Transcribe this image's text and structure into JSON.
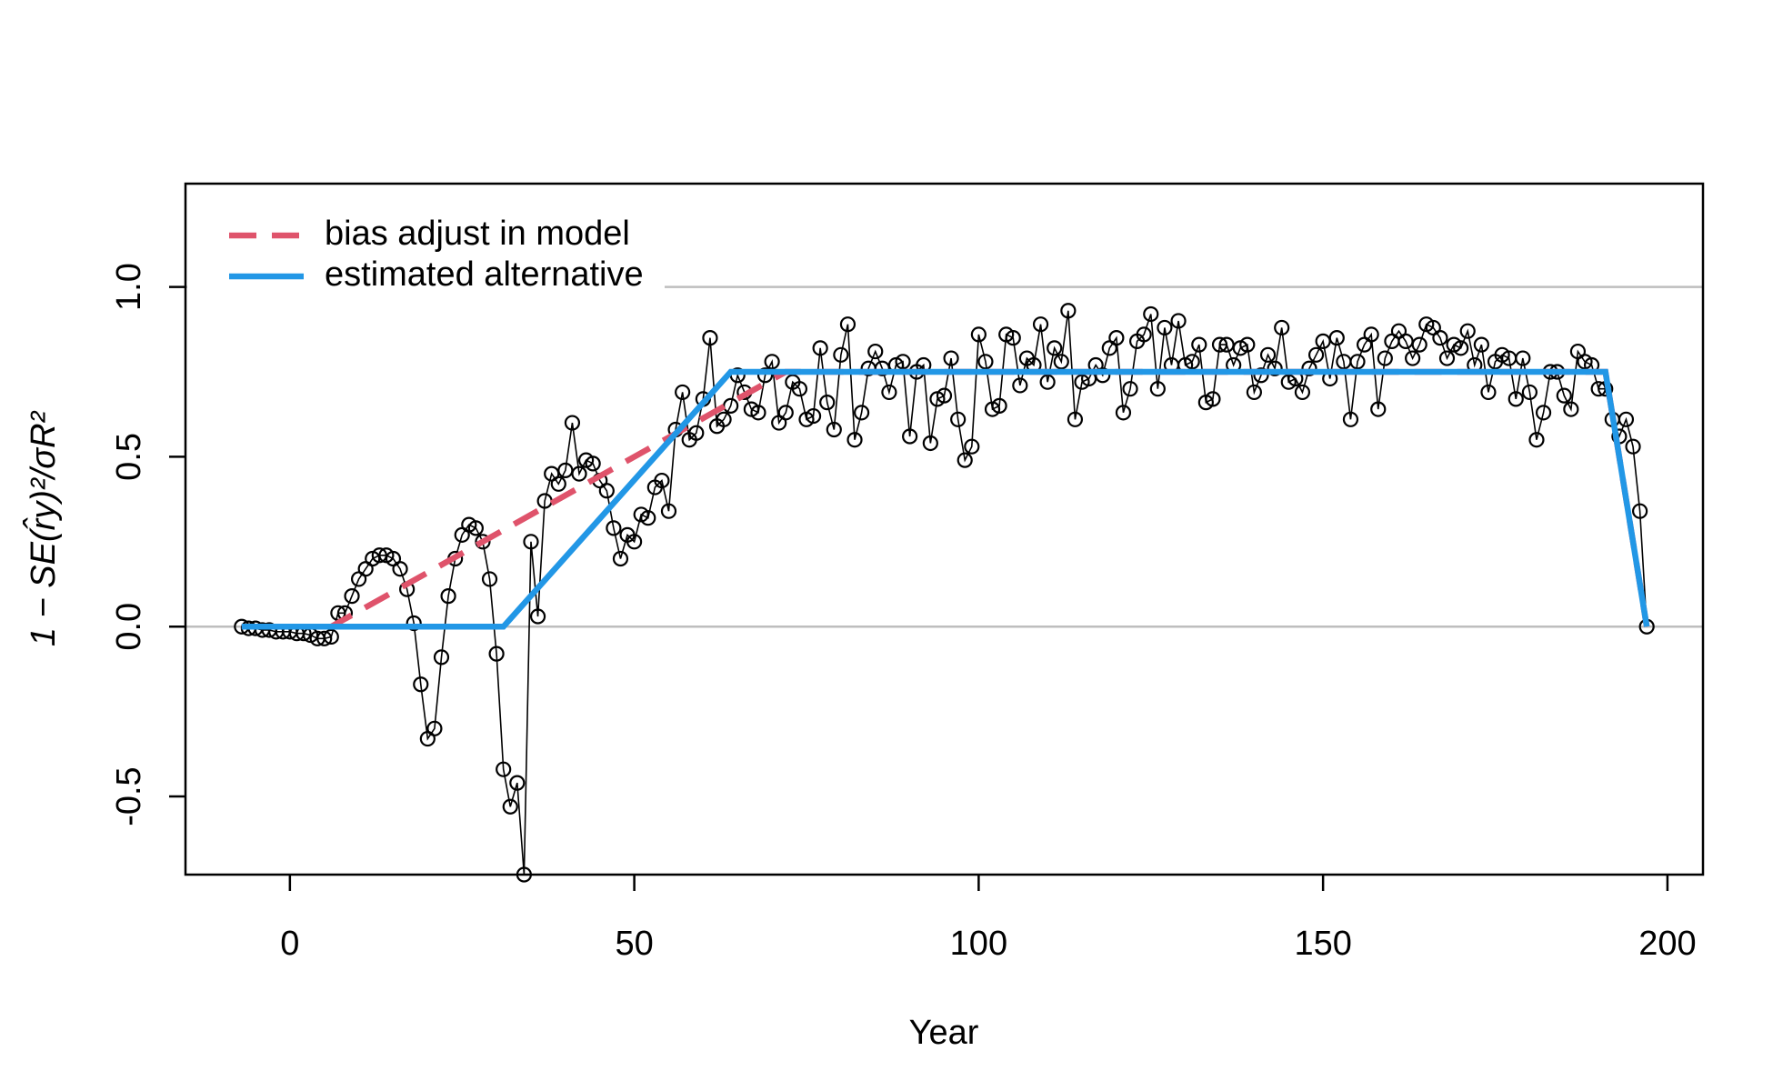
{
  "chart_data": {
    "type": "scatter",
    "xlabel": "Year",
    "ylabel": "1 − SE(r̂y)²/σR²",
    "xlim": [
      -15.16,
      205.16
    ],
    "ylim": [
      -0.73,
      1.304
    ],
    "xticks": [
      0,
      50,
      100,
      150,
      200
    ],
    "yticks": [
      -0.5,
      {
        "value": 0,
        "label": "0.0"
      },
      0.5,
      {
        "value": 1,
        "label": "1.0"
      }
    ],
    "reference_lines": [
      0,
      1
    ],
    "legend": "topleft",
    "point_color": "#000000",
    "x": [
      -7,
      -6,
      -5,
      -4,
      -3,
      -2,
      -1,
      0,
      1,
      2,
      3,
      4,
      5,
      6,
      7,
      8,
      9,
      10,
      11,
      12,
      13,
      14,
      15,
      16,
      17,
      18,
      19,
      20,
      21,
      22,
      23,
      24,
      25,
      26,
      27,
      28,
      29,
      30,
      31,
      32,
      33,
      34,
      35,
      36,
      37,
      38,
      39,
      40,
      41,
      42,
      43,
      44,
      45,
      46,
      47,
      48,
      49,
      50,
      51,
      52,
      53,
      54,
      55,
      56,
      57,
      58,
      59,
      60,
      61,
      62,
      63,
      64,
      65,
      66,
      67,
      68,
      69,
      70,
      71,
      72,
      73,
      74,
      75,
      76,
      77,
      78,
      79,
      80,
      81,
      82,
      83,
      84,
      85,
      86,
      87,
      88,
      89,
      90,
      91,
      92,
      93,
      94,
      95,
      96,
      97,
      98,
      99,
      100,
      101,
      102,
      103,
      104,
      105,
      106,
      107,
      108,
      109,
      110,
      111,
      112,
      113,
      114,
      115,
      116,
      117,
      118,
      119,
      120,
      121,
      122,
      123,
      124,
      125,
      126,
      127,
      128,
      129,
      130,
      131,
      132,
      133,
      134,
      135,
      136,
      137,
      138,
      139,
      140,
      141,
      142,
      143,
      144,
      145,
      146,
      147,
      148,
      149,
      150,
      151,
      152,
      153,
      154,
      155,
      156,
      157,
      158,
      159,
      160,
      161,
      162,
      163,
      164,
      165,
      166,
      167,
      168,
      169,
      170,
      171,
      172,
      173,
      174,
      175,
      176,
      177,
      178,
      179,
      180,
      181,
      182,
      183,
      184,
      185,
      186,
      187,
      188,
      189,
      190,
      191,
      192,
      193,
      194,
      195,
      196,
      197
    ],
    "values": [
      0,
      -0.005,
      -0.005,
      -0.01,
      -0.01,
      -0.015,
      -0.015,
      -0.015,
      -0.02,
      -0.02,
      -0.025,
      -0.035,
      -0.035,
      -0.03,
      0.04,
      0.04,
      0.09,
      0.14,
      0.17,
      0.2,
      0.21,
      0.21,
      0.2,
      0.17,
      0.11,
      0.01,
      -0.17,
      -0.33,
      -0.3,
      -0.09,
      0.09,
      0.2,
      0.27,
      0.3,
      0.29,
      0.25,
      0.14,
      -0.08,
      -0.42,
      -0.53,
      -0.46,
      -0.73,
      0.25,
      0.03,
      0.37,
      0.45,
      0.42,
      0.46,
      0.6,
      0.45,
      0.49,
      0.48,
      0.43,
      0.4,
      0.29,
      0.2,
      0.27,
      0.25,
      0.33,
      0.32,
      0.41,
      0.43,
      0.34,
      0.58,
      0.69,
      0.55,
      0.57,
      0.67,
      0.85,
      0.59,
      0.61,
      0.65,
      0.74,
      0.69,
      0.64,
      0.63,
      0.74,
      0.78,
      0.6,
      0.63,
      0.72,
      0.7,
      0.61,
      0.62,
      0.82,
      0.66,
      0.58,
      0.8,
      0.89,
      0.55,
      0.63,
      0.76,
      0.81,
      0.76,
      0.69,
      0.77,
      0.78,
      0.56,
      0.75,
      0.77,
      0.54,
      0.67,
      0.68,
      0.79,
      0.61,
      0.49,
      0.53,
      0.86,
      0.78,
      0.64,
      0.65,
      0.86,
      0.85,
      0.71,
      0.79,
      0.77,
      0.89,
      0.72,
      0.82,
      0.78,
      0.93,
      0.61,
      0.72,
      0.73,
      0.77,
      0.74,
      0.82,
      0.85,
      0.63,
      0.7,
      0.84,
      0.86,
      0.92,
      0.7,
      0.88,
      0.77,
      0.9,
      0.77,
      0.78,
      0.83,
      0.66,
      0.67,
      0.83,
      0.83,
      0.77,
      0.82,
      0.83,
      0.69,
      0.74,
      0.8,
      0.76,
      0.88,
      0.72,
      0.73,
      0.69,
      0.76,
      0.8,
      0.84,
      0.73,
      0.85,
      0.78,
      0.61,
      0.78,
      0.83,
      0.86,
      0.64,
      0.79,
      0.84,
      0.87,
      0.84,
      0.79,
      0.83,
      0.89,
      0.88,
      0.85,
      0.79,
      0.83,
      0.82,
      0.87,
      0.77,
      0.83,
      0.69,
      0.78,
      0.8,
      0.79,
      0.67,
      0.79,
      0.69,
      0.55,
      0.63,
      0.75,
      0.75,
      0.68,
      0.64,
      0.81,
      0.78,
      0.77,
      0.7,
      0.7,
      0.61,
      0.56,
      0.61,
      0.53,
      0.34,
      0
    ],
    "series": [
      {
        "name": "bias adjust in model",
        "color": "#DF536B",
        "dashed": true,
        "x": [
          -7,
          6,
          72,
          191,
          197
        ],
        "values": [
          0,
          0,
          0.75,
          0.75,
          0
        ]
      },
      {
        "name": "estimated alternative",
        "color": "#2297E6",
        "dashed": false,
        "x": [
          -7,
          31,
          64,
          191,
          197
        ],
        "values": [
          0,
          0,
          0.75,
          0.75,
          0
        ]
      }
    ]
  }
}
